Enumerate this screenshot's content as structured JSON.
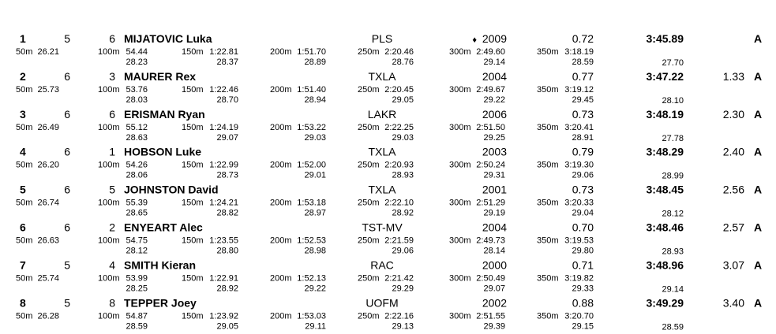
{
  "split_labels": [
    "50m",
    "100m",
    "150m",
    "200m",
    "250m",
    "300m",
    "350m"
  ],
  "results": [
    {
      "place": "1",
      "heat": "5",
      "lane": "6",
      "name": "MIJATOVIC Luka",
      "team": "PLS",
      "marker": "♦",
      "year": "2009",
      "reaction": "0.72",
      "time": "3:45.89",
      "qual": "A",
      "splits": [
        "26.21",
        "54.44",
        "1:22.81",
        "1:51.70",
        "2:20.46",
        "2:49.60",
        "3:18.19"
      ],
      "deltas": [
        "28.23",
        "28.37",
        "28.89",
        "28.76",
        "29.14",
        "28.59",
        "27.70"
      ]
    },
    {
      "place": "2",
      "heat": "6",
      "lane": "3",
      "name": "MAURER Rex",
      "team": "TXLA",
      "year": "2004",
      "reaction": "0.77",
      "time": "3:47.22",
      "behind": "1.33",
      "qual": "A",
      "splits": [
        "25.73",
        "53.76",
        "1:22.46",
        "1:51.40",
        "2:20.45",
        "2:49.67",
        "3:19.12"
      ],
      "deltas": [
        "28.03",
        "28.70",
        "28.94",
        "29.05",
        "29.22",
        "29.45",
        "28.10"
      ]
    },
    {
      "place": "3",
      "heat": "6",
      "lane": "6",
      "name": "ERISMAN Ryan",
      "team": "LAKR",
      "year": "2006",
      "reaction": "0.73",
      "time": "3:48.19",
      "behind": "2.30",
      "qual": "A",
      "splits": [
        "26.49",
        "55.12",
        "1:24.19",
        "1:53.22",
        "2:22.25",
        "2:51.50",
        "3:20.41"
      ],
      "deltas": [
        "28.63",
        "29.07",
        "29.03",
        "29.03",
        "29.25",
        "28.91",
        "27.78"
      ]
    },
    {
      "place": "4",
      "heat": "6",
      "lane": "1",
      "name": "HOBSON Luke",
      "team": "TXLA",
      "year": "2003",
      "reaction": "0.79",
      "time": "3:48.29",
      "behind": "2.40",
      "qual": "A",
      "splits": [
        "26.20",
        "54.26",
        "1:22.99",
        "1:52.00",
        "2:20.93",
        "2:50.24",
        "3:19.30"
      ],
      "deltas": [
        "28.06",
        "28.73",
        "29.01",
        "28.93",
        "29.31",
        "29.06",
        "28.99"
      ]
    },
    {
      "place": "5",
      "heat": "6",
      "lane": "5",
      "name": "JOHNSTON David",
      "team": "TXLA",
      "year": "2001",
      "reaction": "0.73",
      "time": "3:48.45",
      "behind": "2.56",
      "qual": "A",
      "splits": [
        "26.74",
        "55.39",
        "1:24.21",
        "1:53.18",
        "2:22.10",
        "2:51.29",
        "3:20.33"
      ],
      "deltas": [
        "28.65",
        "28.82",
        "28.97",
        "28.92",
        "29.19",
        "29.04",
        "28.12"
      ]
    },
    {
      "place": "6",
      "heat": "6",
      "lane": "2",
      "name": "ENYEART Alec",
      "team": "TST-MV",
      "year": "2004",
      "reaction": "0.70",
      "time": "3:48.46",
      "behind": "2.57",
      "qual": "A",
      "splits": [
        "26.63",
        "54.75",
        "1:23.55",
        "1:52.53",
        "2:21.59",
        "2:49.73",
        "3:19.53"
      ],
      "deltas": [
        "28.12",
        "28.80",
        "28.98",
        "29.06",
        "28.14",
        "29.80",
        "28.93"
      ]
    },
    {
      "place": "7",
      "heat": "5",
      "lane": "4",
      "name": "SMITH Kieran",
      "team": "RAC",
      "year": "2000",
      "reaction": "0.71",
      "time": "3:48.96",
      "behind": "3.07",
      "qual": "A",
      "splits": [
        "25.74",
        "53.99",
        "1:22.91",
        "1:52.13",
        "2:21.42",
        "2:50.49",
        "3:19.82"
      ],
      "deltas": [
        "28.25",
        "28.92",
        "29.22",
        "29.29",
        "29.07",
        "29.33",
        "29.14"
      ]
    },
    {
      "place": "8",
      "heat": "5",
      "lane": "8",
      "name": "TEPPER Joey",
      "team": "UOFM",
      "year": "2002",
      "reaction": "0.88",
      "time": "3:49.29",
      "behind": "3.40",
      "qual": "A",
      "splits": [
        "26.28",
        "54.87",
        "1:23.92",
        "1:53.03",
        "2:22.16",
        "2:51.55",
        "3:20.70"
      ],
      "deltas": [
        "28.59",
        "29.05",
        "29.11",
        "29.13",
        "29.39",
        "29.15",
        "28.59"
      ]
    }
  ]
}
